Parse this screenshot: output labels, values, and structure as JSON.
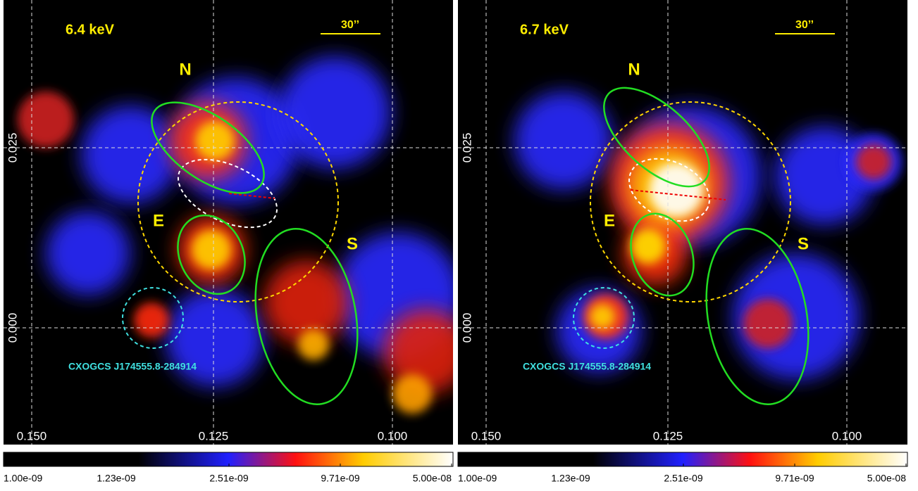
{
  "panels": [
    {
      "energy": "6.4 keV",
      "scale": "30’’",
      "regions": {
        "north": "N",
        "east": "E",
        "south": "S"
      },
      "source": "CXOGCS J174555.8-284914",
      "x_ticks": [
        "0.150",
        "0.125",
        "0.100"
      ],
      "y_ticks": [
        "0.025",
        "0.000"
      ],
      "colorbar_ticks": [
        "1.00e-09",
        "1.23e-09",
        "2.51e-09",
        "9.71e-09",
        "5.00e-08"
      ]
    },
    {
      "energy": "6.7 keV",
      "scale": "30’’",
      "regions": {
        "north": "N",
        "east": "E",
        "south": "S"
      },
      "source": "CXOGCS J174555.8-284914",
      "x_ticks": [
        "0.150",
        "0.125",
        "0.100"
      ],
      "y_ticks": [
        "0.025",
        "0.000"
      ],
      "colorbar_ticks": [
        "1.00e-09",
        "1.23e-09",
        "2.51e-09",
        "9.71e-09",
        "5.00e-08"
      ]
    }
  ]
}
